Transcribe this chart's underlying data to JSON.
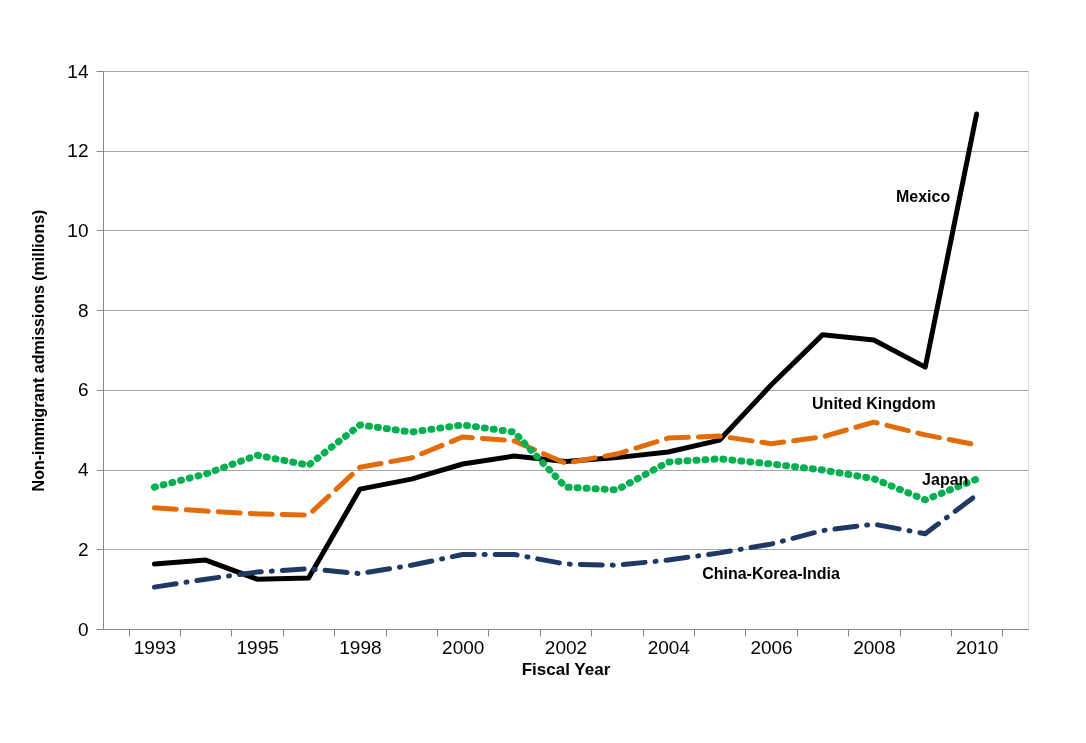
{
  "chart_data": {
    "type": "line",
    "xlabel": "Fiscal Year",
    "ylabel": "Non-immigrant admissions (millions)",
    "categories": [
      "1993",
      null,
      "1995",
      null,
      "1998",
      null,
      "2000",
      null,
      "2002",
      null,
      "2004",
      null,
      "2006",
      null,
      "2008",
      null,
      "2010"
    ],
    "series": [
      {
        "name": "Mexico",
        "color": "#000000",
        "line_style": "solid",
        "values": [
          1.63,
          1.73,
          1.25,
          1.28,
          3.51,
          3.76,
          4.14,
          4.34,
          4.2,
          4.3,
          4.44,
          4.74,
          6.12,
          7.38,
          7.25,
          6.57,
          12.92
        ]
      },
      {
        "name": "United Kingdom",
        "color": "#e36c0a",
        "line_style": "dashed",
        "values": [
          3.04,
          2.96,
          2.89,
          2.86,
          4.06,
          4.29,
          4.82,
          4.72,
          4.16,
          4.39,
          4.79,
          4.84,
          4.65,
          4.82,
          5.19,
          4.87,
          4.62
        ]
      },
      {
        "name": "Japan",
        "color": "#00b050",
        "line_style": "dotted",
        "values": [
          3.56,
          3.89,
          4.36,
          4.11,
          5.12,
          4.94,
          5.12,
          4.94,
          3.56,
          3.49,
          4.19,
          4.27,
          4.14,
          3.99,
          3.77,
          3.24,
          3.76
        ]
      },
      {
        "name": "China-Korea-India",
        "color": "#1f3864",
        "line_style": "dashdot",
        "values": [
          1.05,
          1.25,
          1.43,
          1.51,
          1.39,
          1.6,
          1.87,
          1.87,
          1.63,
          1.6,
          1.73,
          1.91,
          2.13,
          2.47,
          2.63,
          2.39,
          3.36
        ]
      }
    ],
    "ylim": [
      0,
      14
    ],
    "yticks": [
      0,
      2,
      4,
      6,
      8,
      10,
      12,
      14
    ],
    "grid": "y",
    "marker": "none"
  }
}
